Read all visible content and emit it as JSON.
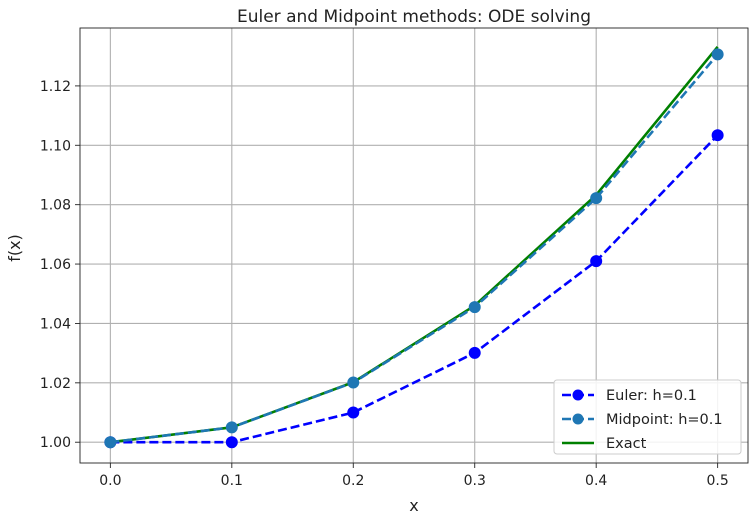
{
  "chart_data": {
    "type": "line",
    "title": "Euler and Midpoint methods: ODE solving",
    "xlabel": "x",
    "ylabel": "f(x)",
    "xlim": [
      -0.025,
      0.525
    ],
    "ylim": [
      0.993,
      1.1395
    ],
    "xticks": [
      "0.0",
      "0.1",
      "0.2",
      "0.3",
      "0.4",
      "0.5"
    ],
    "yticks": [
      "1.00",
      "1.02",
      "1.04",
      "1.06",
      "1.08",
      "1.10",
      "1.12"
    ],
    "grid": true,
    "legend_position": "lower-right",
    "series": [
      {
        "name": "Euler: h=0.1",
        "color": "#0000ff",
        "line_style": "dashed",
        "marker": "circle",
        "x": [
          0.0,
          0.1,
          0.2,
          0.3,
          0.4,
          0.5
        ],
        "y": [
          1.0,
          1.0,
          1.01,
          1.0301,
          1.061,
          1.1034
        ]
      },
      {
        "name": "Midpoint: h=0.1",
        "color": "#1f77b4",
        "line_style": "dashed",
        "marker": "circle",
        "x": [
          0.0,
          0.1,
          0.2,
          0.3,
          0.4,
          0.5
        ],
        "y": [
          1.0,
          1.005,
          1.0201,
          1.0455,
          1.0822,
          1.1306
        ]
      },
      {
        "name": "Exact",
        "color": "#008000",
        "line_style": "solid",
        "marker": "none",
        "x": [
          0.0,
          0.1,
          0.2,
          0.3,
          0.4,
          0.5
        ],
        "y": [
          1.0,
          1.00501,
          1.0202,
          1.04603,
          1.08329,
          1.13315
        ]
      }
    ]
  }
}
